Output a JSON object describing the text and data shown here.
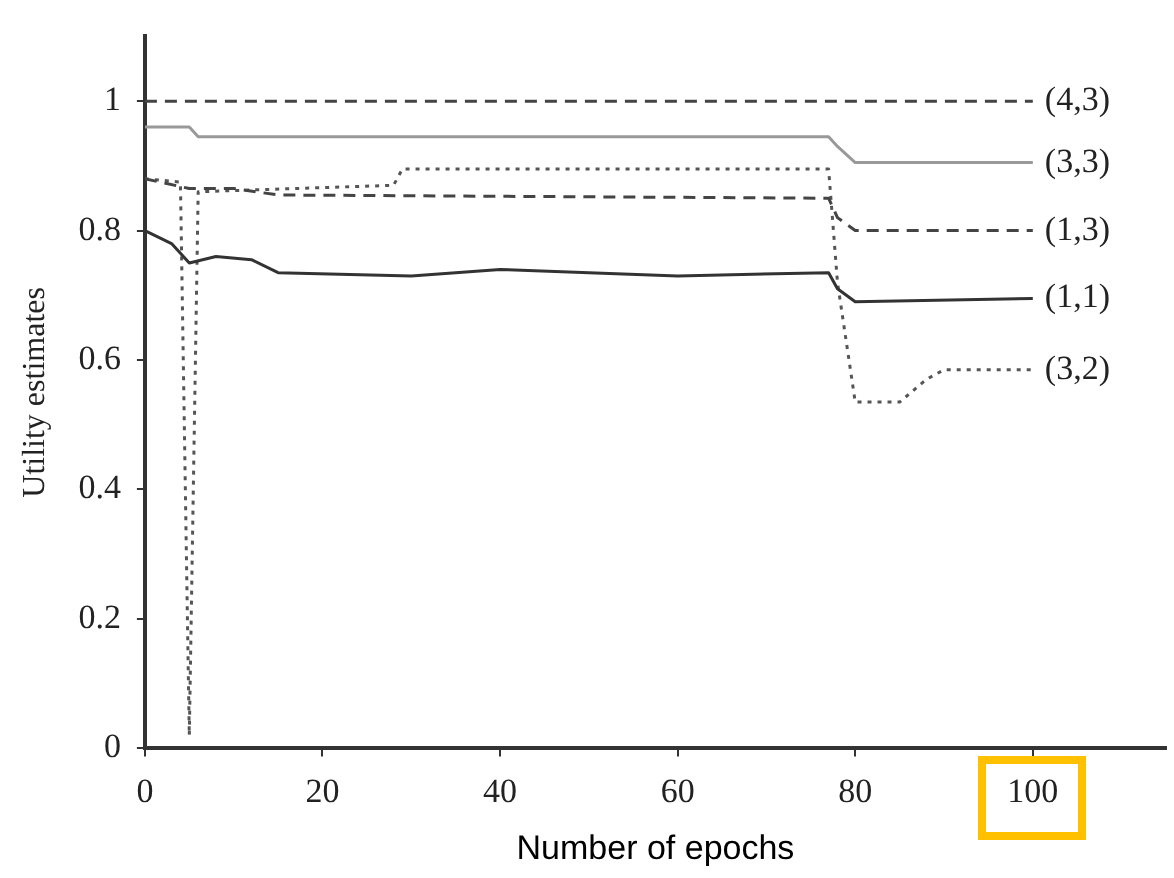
{
  "chart_data": {
    "type": "line",
    "xlabel": "Number of epochs",
    "ylabel": "Utility estimates",
    "xlim": [
      0,
      115
    ],
    "xticks": [
      0,
      20,
      40,
      60,
      80,
      100
    ],
    "ylim": [
      0,
      1.1
    ],
    "yticks": [
      0,
      0.2,
      0.4,
      0.6,
      0.8,
      1
    ],
    "grid": false,
    "legend": false,
    "marker": "none",
    "series": [
      {
        "name": "(4,3)",
        "color": "#444444",
        "line_style": "dashed",
        "x": [
          0,
          100
        ],
        "values": [
          1,
          1
        ]
      },
      {
        "name": "(3,3)",
        "color": "#999999",
        "line_style": "solid",
        "x": [
          0,
          5,
          6,
          77,
          78,
          80,
          100
        ],
        "values": [
          0.96,
          0.96,
          0.945,
          0.945,
          0.93,
          0.905,
          0.905
        ]
      },
      {
        "name": "(1,3)",
        "color": "#444444",
        "line_style": "dashed",
        "x": [
          0,
          5,
          10,
          15,
          77,
          78,
          80,
          100
        ],
        "values": [
          0.88,
          0.865,
          0.865,
          0.855,
          0.85,
          0.82,
          0.8,
          0.8
        ]
      },
      {
        "name": "(1,1)",
        "color": "#333333",
        "line_style": "solid",
        "x": [
          0,
          3,
          5,
          8,
          12,
          15,
          30,
          40,
          50,
          60,
          77,
          78,
          80,
          100
        ],
        "values": [
          0.8,
          0.78,
          0.75,
          0.76,
          0.755,
          0.735,
          0.73,
          0.74,
          0.735,
          0.73,
          0.735,
          0.71,
          0.69,
          0.695
        ]
      },
      {
        "name": "(3,2)",
        "color": "#555555",
        "line_style": "dotted",
        "x": [
          0,
          4,
          5,
          6,
          28,
          29,
          77,
          78,
          80,
          85,
          88,
          90,
          100
        ],
        "values": [
          0.88,
          0.875,
          0.02,
          0.86,
          0.87,
          0.895,
          0.895,
          0.72,
          0.535,
          0.535,
          0.57,
          0.585,
          0.585
        ]
      }
    ]
  }
}
